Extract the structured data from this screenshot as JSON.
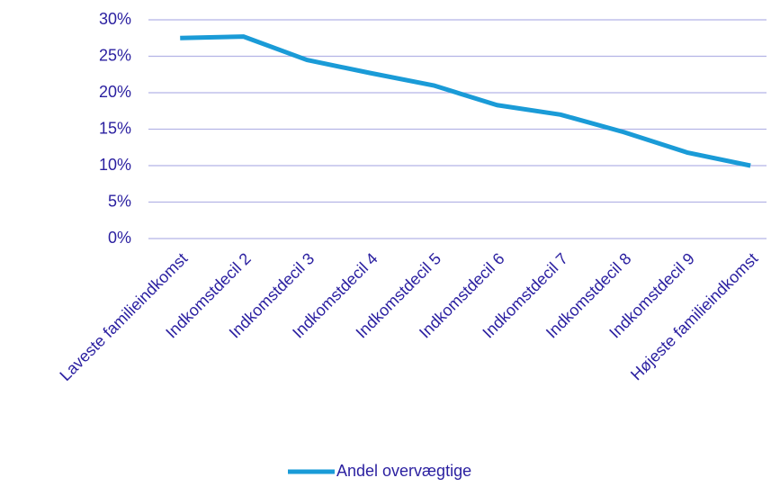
{
  "chart_data": {
    "type": "line",
    "categories": [
      "Laveste familieindkomst",
      "Indkomstdecil 2",
      "Indkomstdecil 3",
      "Indkomstdecil 4",
      "Indkomstdecil 5",
      "Indkomstdecil 6",
      "Indkomstdecil 7",
      "Indkomstdecil 8",
      "Indkomstdecil 9",
      "Højeste familieindkomst"
    ],
    "series": [
      {
        "name": "Andel overvægtige",
        "color": "#1a9bd7",
        "values": [
          27.5,
          27.7,
          24.5,
          22.7,
          21.0,
          18.3,
          17.0,
          14.6,
          11.8,
          10.0
        ]
      }
    ],
    "ylim": [
      0,
      30
    ],
    "yticks": [
      {
        "value": 0,
        "label": "0%"
      },
      {
        "value": 5,
        "label": "5%"
      },
      {
        "value": 10,
        "label": "10%"
      },
      {
        "value": 15,
        "label": "15%"
      },
      {
        "value": 20,
        "label": "20%"
      },
      {
        "value": 25,
        "label": "25%"
      },
      {
        "value": 30,
        "label": "30%"
      }
    ],
    "grid": true,
    "legend": "bottom"
  }
}
